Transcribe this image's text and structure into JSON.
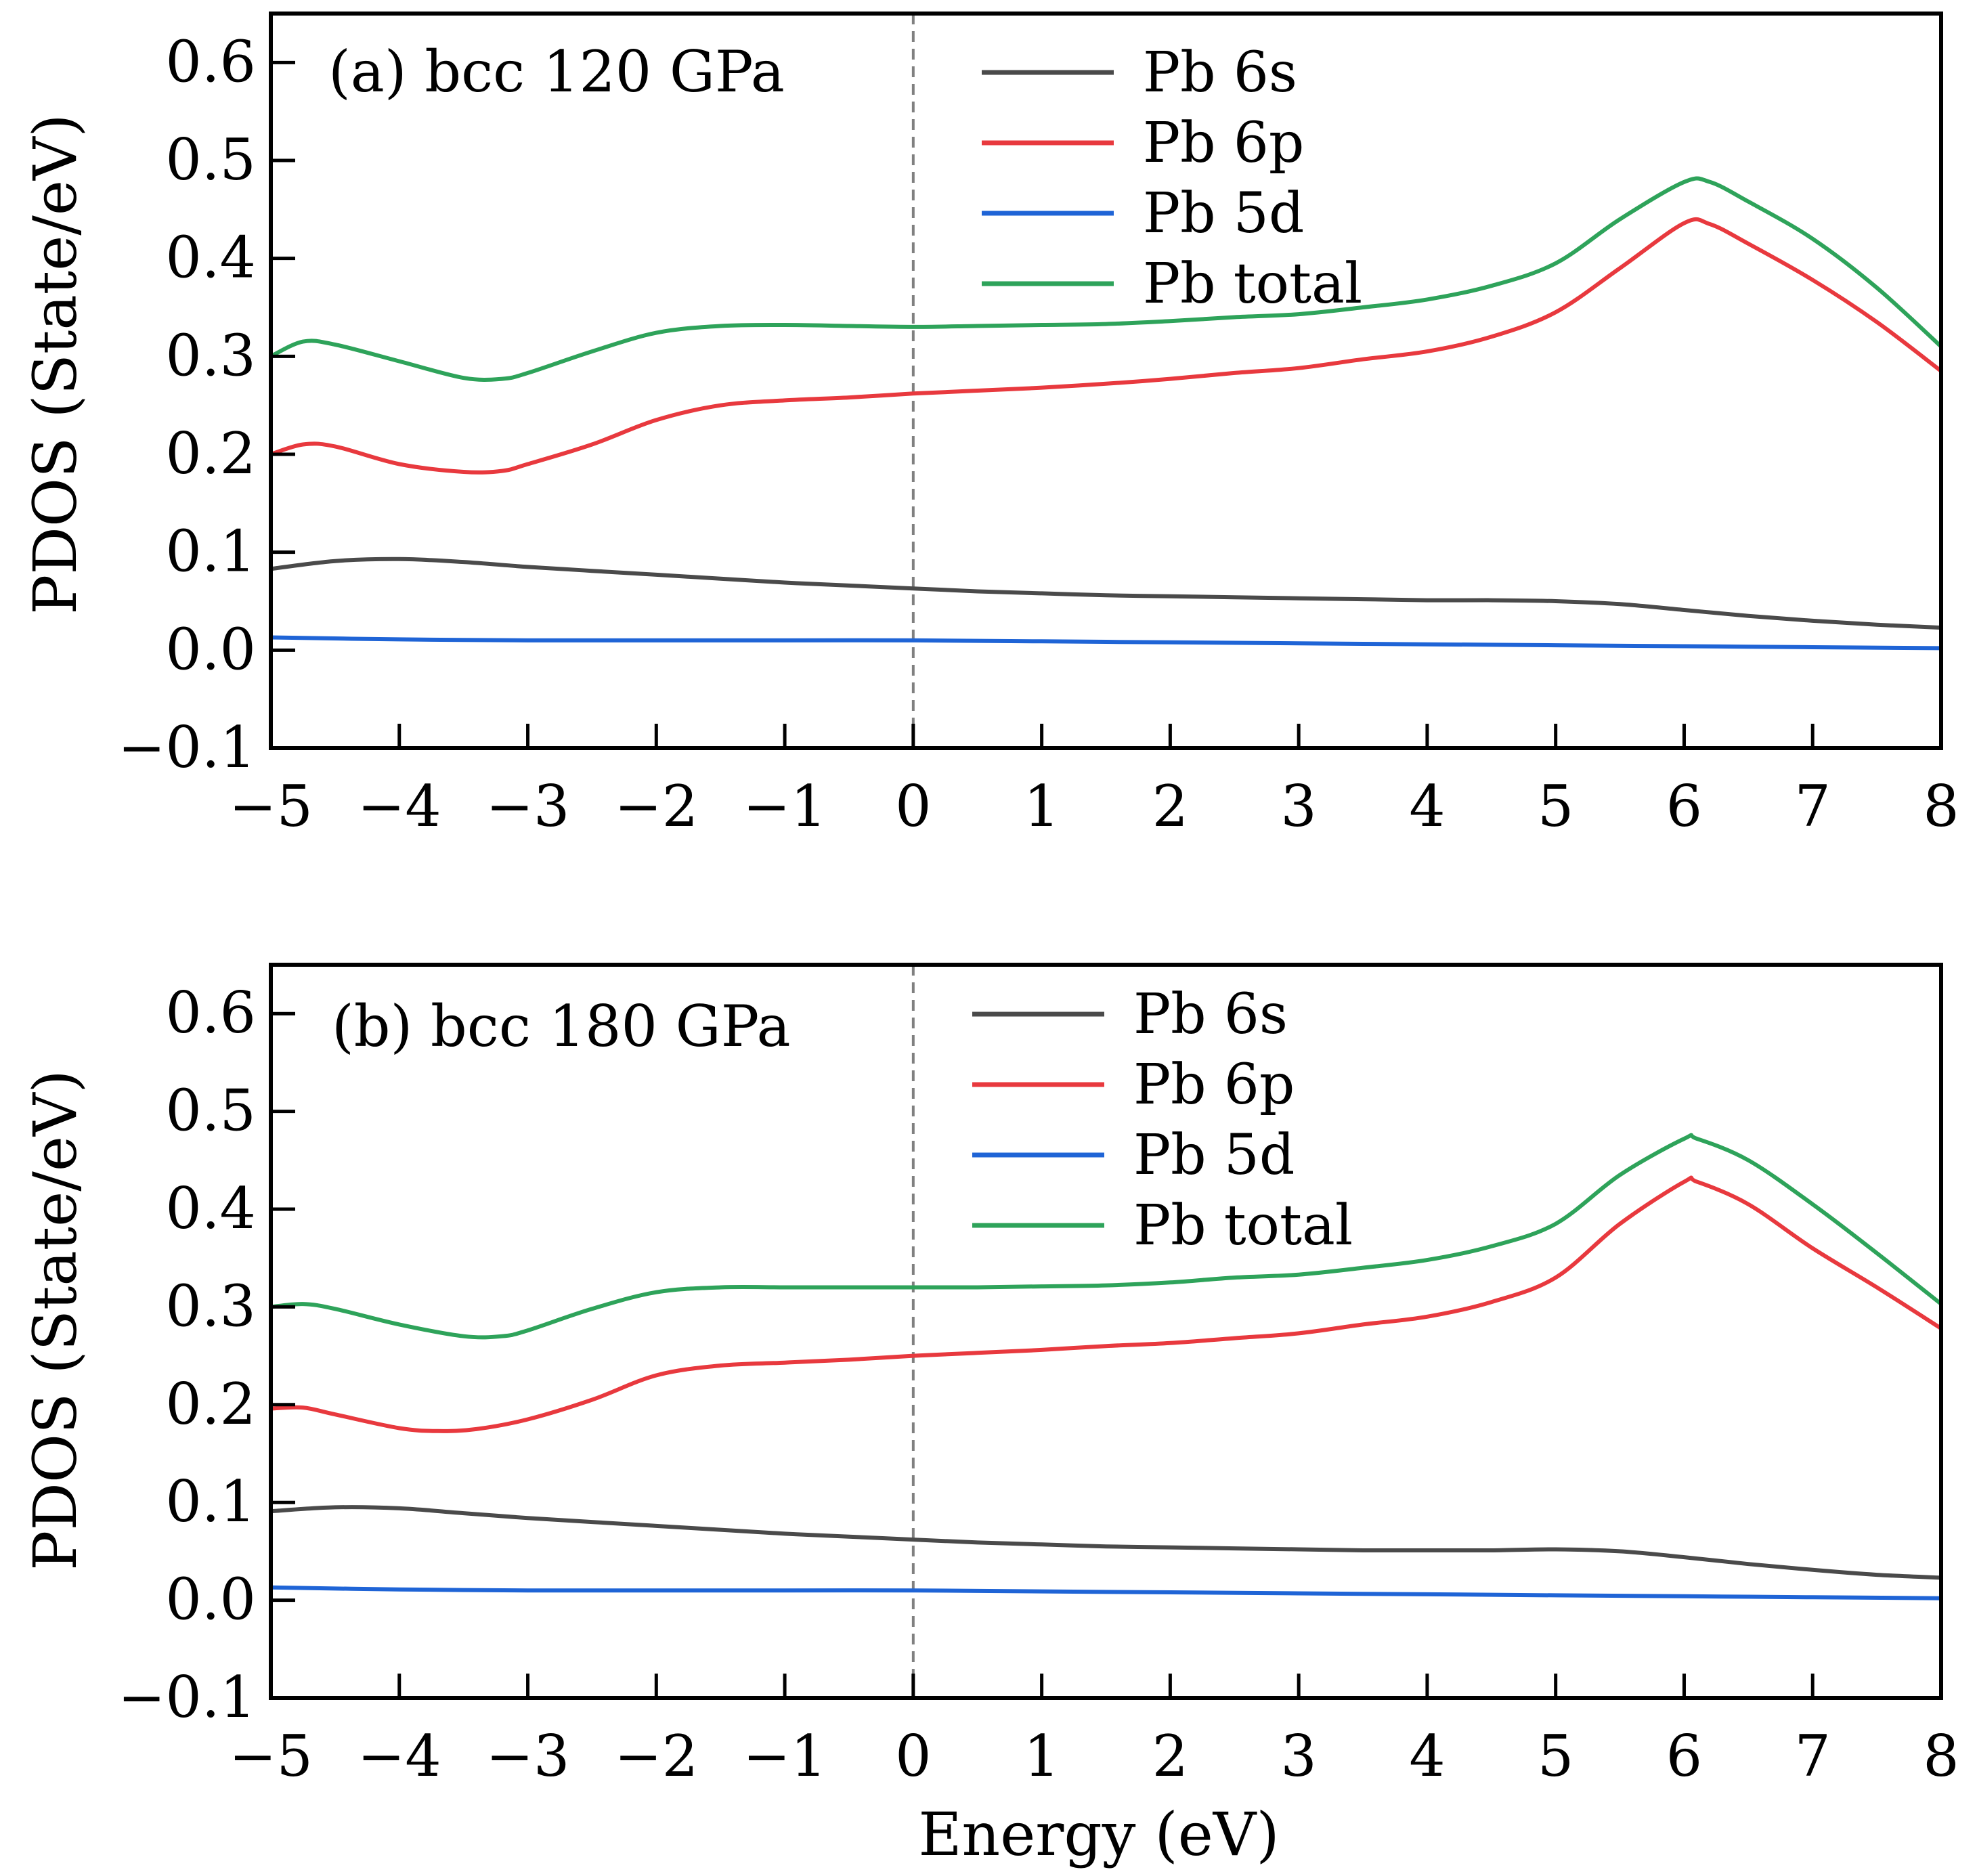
{
  "figure": {
    "xlabel": "Energy (eV)",
    "ylabel": "PDOS (State/eV)"
  },
  "colors": {
    "Pb 6s": "#4a4a4a",
    "Pb 6p": "#e8393e",
    "Pb 5d": "#1f64d6",
    "Pb total": "#2ea35a",
    "fermi_line": "#808080"
  },
  "chart_data": [
    {
      "type": "line",
      "title": "(a) bcc 120 GPa",
      "xlabel": "",
      "ylabel": "PDOS (State/eV)",
      "xlim": [
        -5,
        8
      ],
      "ylim": [
        -0.1,
        0.65
      ],
      "xticks": [
        -5,
        -4,
        -3,
        -2,
        -1,
        0,
        1,
        2,
        3,
        4,
        5,
        6,
        7,
        8
      ],
      "xtick_labels": [
        "−5",
        "−4",
        "−3",
        "−2",
        "−1",
        "0",
        "1",
        "2",
        "3",
        "4",
        "5",
        "6",
        "7",
        "8"
      ],
      "yticks": [
        -0.1,
        0.0,
        0.1,
        0.2,
        0.3,
        0.4,
        0.5,
        0.6
      ],
      "ytick_labels": [
        "−0.1",
        "0.0",
        "0.1",
        "0.2",
        "0.3",
        "0.4",
        "0.5",
        "0.6"
      ],
      "fermi_level": 0,
      "legend_position": "top-center",
      "series": [
        {
          "name": "Pb 6s",
          "x": [
            -5,
            -4.5,
            -4,
            -3.5,
            -3,
            -2.5,
            -2,
            -1.5,
            -1,
            -0.5,
            0,
            0.5,
            1,
            1.5,
            2,
            2.5,
            3,
            3.5,
            4,
            4.5,
            5,
            5.5,
            6,
            6.5,
            7,
            7.5,
            8
          ],
          "values": [
            0.083,
            0.091,
            0.093,
            0.09,
            0.085,
            0.081,
            0.077,
            0.073,
            0.069,
            0.066,
            0.063,
            0.06,
            0.058,
            0.056,
            0.055,
            0.054,
            0.053,
            0.052,
            0.051,
            0.051,
            0.05,
            0.047,
            0.041,
            0.035,
            0.03,
            0.026,
            0.023
          ]
        },
        {
          "name": "Pb 6p",
          "x": [
            -5,
            -4.75,
            -4.5,
            -4,
            -3.5,
            -3.2,
            -3,
            -2.5,
            -2,
            -1.5,
            -1,
            -0.5,
            0,
            0.5,
            1,
            1.5,
            2,
            2.5,
            3,
            3.5,
            4,
            4.5,
            5,
            5.5,
            6,
            6.2,
            6.5,
            7,
            7.5,
            8
          ],
          "values": [
            0.2,
            0.21,
            0.208,
            0.19,
            0.182,
            0.183,
            0.19,
            0.21,
            0.235,
            0.25,
            0.255,
            0.258,
            0.262,
            0.265,
            0.268,
            0.272,
            0.277,
            0.283,
            0.288,
            0.297,
            0.305,
            0.32,
            0.345,
            0.39,
            0.436,
            0.435,
            0.415,
            0.378,
            0.335,
            0.285
          ]
        },
        {
          "name": "Pb 5d",
          "x": [
            -5,
            -4,
            -3,
            -2,
            -1,
            0,
            1,
            2,
            3,
            4,
            5,
            6,
            7,
            8
          ],
          "values": [
            0.013,
            0.011,
            0.01,
            0.01,
            0.01,
            0.01,
            0.009,
            0.008,
            0.007,
            0.006,
            0.005,
            0.004,
            0.003,
            0.002
          ]
        },
        {
          "name": "Pb total",
          "x": [
            -5,
            -4.75,
            -4.5,
            -4,
            -3.5,
            -3.2,
            -3,
            -2.5,
            -2,
            -1.5,
            -1,
            -0.5,
            0,
            0.5,
            1,
            1.5,
            2,
            2.5,
            3,
            3.5,
            4,
            4.5,
            5,
            5.5,
            6,
            6.2,
            6.5,
            7,
            7.5,
            8
          ],
          "values": [
            0.3,
            0.315,
            0.312,
            0.295,
            0.278,
            0.277,
            0.283,
            0.305,
            0.324,
            0.331,
            0.332,
            0.331,
            0.33,
            0.331,
            0.332,
            0.333,
            0.336,
            0.34,
            0.343,
            0.35,
            0.358,
            0.372,
            0.395,
            0.44,
            0.478,
            0.478,
            0.458,
            0.42,
            0.37,
            0.31
          ]
        }
      ]
    },
    {
      "type": "line",
      "title": "(b) bcc 180 GPa",
      "xlabel": "Energy (eV)",
      "ylabel": "PDOS (State/eV)",
      "xlim": [
        -5,
        8
      ],
      "ylim": [
        -0.1,
        0.65
      ],
      "xticks": [
        -5,
        -4,
        -3,
        -2,
        -1,
        0,
        1,
        2,
        3,
        4,
        5,
        6,
        7,
        8
      ],
      "xtick_labels": [
        "−5",
        "−4",
        "−3",
        "−2",
        "−1",
        "0",
        "1",
        "2",
        "3",
        "4",
        "5",
        "6",
        "7",
        "8"
      ],
      "yticks": [
        -0.1,
        0.0,
        0.1,
        0.2,
        0.3,
        0.4,
        0.5,
        0.6
      ],
      "ytick_labels": [
        "−0.1",
        "0.0",
        "0.1",
        "0.2",
        "0.3",
        "0.4",
        "0.5",
        "0.6"
      ],
      "fermi_level": 0,
      "legend_position": "top-center",
      "series": [
        {
          "name": "Pb 6s",
          "x": [
            -5,
            -4.5,
            -4,
            -3.5,
            -3,
            -2.5,
            -2,
            -1.5,
            -1,
            -0.5,
            0,
            0.5,
            1,
            1.5,
            2,
            2.5,
            3,
            3.5,
            4,
            4.5,
            5,
            5.5,
            6,
            6.5,
            7,
            7.5,
            8
          ],
          "values": [
            0.091,
            0.095,
            0.094,
            0.089,
            0.084,
            0.08,
            0.076,
            0.072,
            0.068,
            0.065,
            0.062,
            0.059,
            0.057,
            0.055,
            0.054,
            0.053,
            0.052,
            0.051,
            0.051,
            0.051,
            0.052,
            0.05,
            0.044,
            0.037,
            0.031,
            0.026,
            0.023
          ]
        },
        {
          "name": "Pb 6p",
          "x": [
            -5,
            -4.75,
            -4.5,
            -4,
            -3.7,
            -3.4,
            -3,
            -2.5,
            -2,
            -1.5,
            -1,
            -0.5,
            0,
            0.5,
            1,
            1.5,
            2,
            2.5,
            3,
            3.5,
            4,
            4.5,
            5,
            5.5,
            6,
            6.1,
            6.5,
            7,
            7.5,
            8
          ],
          "values": [
            0.196,
            0.197,
            0.19,
            0.176,
            0.173,
            0.175,
            0.185,
            0.205,
            0.23,
            0.24,
            0.243,
            0.246,
            0.25,
            0.253,
            0.256,
            0.26,
            0.263,
            0.268,
            0.273,
            0.282,
            0.29,
            0.305,
            0.33,
            0.385,
            0.428,
            0.428,
            0.405,
            0.36,
            0.32,
            0.278
          ]
        },
        {
          "name": "Pb 5d",
          "x": [
            -5,
            -4,
            -3,
            -2,
            -1,
            0,
            1,
            2,
            3,
            4,
            5,
            6,
            7,
            8
          ],
          "values": [
            0.013,
            0.011,
            0.01,
            0.01,
            0.01,
            0.01,
            0.009,
            0.008,
            0.007,
            0.006,
            0.005,
            0.004,
            0.003,
            0.002
          ]
        },
        {
          "name": "Pb total",
          "x": [
            -5,
            -4.75,
            -4.5,
            -4,
            -3.5,
            -3.2,
            -3,
            -2.5,
            -2,
            -1.5,
            -1,
            -0.5,
            0,
            0.5,
            1,
            1.5,
            2,
            2.5,
            3,
            3.5,
            4,
            4.5,
            5,
            5.5,
            6,
            6.1,
            6.5,
            7,
            7.5,
            8
          ],
          "values": [
            0.3,
            0.303,
            0.298,
            0.282,
            0.27,
            0.27,
            0.276,
            0.298,
            0.315,
            0.32,
            0.32,
            0.32,
            0.32,
            0.32,
            0.321,
            0.322,
            0.325,
            0.33,
            0.333,
            0.34,
            0.348,
            0.362,
            0.385,
            0.435,
            0.472,
            0.472,
            0.45,
            0.405,
            0.355,
            0.303
          ]
        }
      ]
    }
  ]
}
